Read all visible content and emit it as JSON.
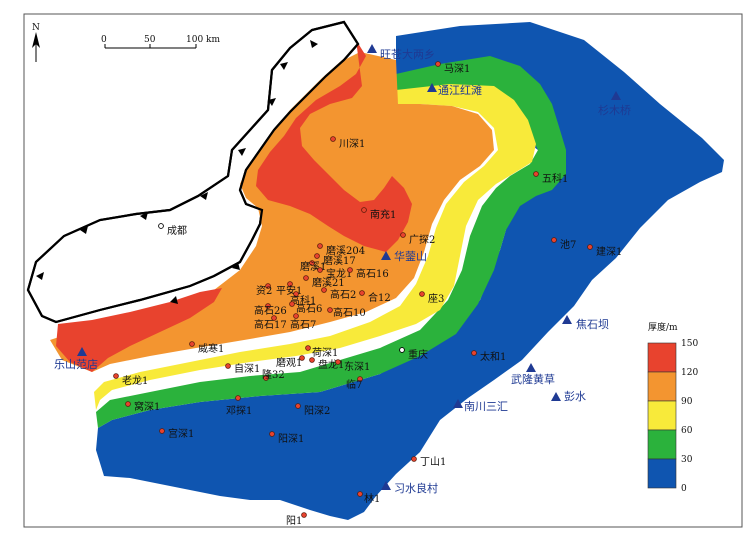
{
  "map": {
    "north_label": "N",
    "scale_ticks": [
      "0",
      "50",
      "100 km"
    ],
    "legend": {
      "title": "厚度/m",
      "ticks": [
        "150",
        "120",
        "90",
        "60",
        "30",
        "0"
      ],
      "colors": [
        "#e8432e",
        "#f39530",
        "#f8ea3a",
        "#2bb23c",
        "#0f55b0"
      ]
    },
    "outcrops": [
      {
        "name": "旺苍大两乡"
      },
      {
        "name": "通江红滩"
      },
      {
        "name": "杉木桥"
      },
      {
        "name": "华蓥山"
      },
      {
        "name": "焦石坝"
      },
      {
        "name": "乐山范店"
      },
      {
        "name": "武隆黄草"
      },
      {
        "name": "彭水"
      },
      {
        "name": "南川三汇"
      },
      {
        "name": "习水良村"
      }
    ],
    "wells": [
      {
        "name": "马深1"
      },
      {
        "name": "川深1"
      },
      {
        "name": "南充1"
      },
      {
        "name": "五科1"
      },
      {
        "name": "广探2"
      },
      {
        "name": "池7"
      },
      {
        "name": "建深1"
      },
      {
        "name": "磨溪204"
      },
      {
        "name": "磨溪17"
      },
      {
        "name": "磨溪1"
      },
      {
        "name": "宝龙1"
      },
      {
        "name": "高石16"
      },
      {
        "name": "磨溪21"
      },
      {
        "name": "资2"
      },
      {
        "name": "平安1"
      },
      {
        "name": "高科1"
      },
      {
        "name": "高石2"
      },
      {
        "name": "合12"
      },
      {
        "name": "座3"
      },
      {
        "name": "高石26"
      },
      {
        "name": "高石6"
      },
      {
        "name": "高石10"
      },
      {
        "name": "高石17"
      },
      {
        "name": "高石7"
      },
      {
        "name": "威寒1"
      },
      {
        "name": "荷深1"
      },
      {
        "name": "磨观1"
      },
      {
        "name": "盘龙1"
      },
      {
        "name": "东深1"
      },
      {
        "name": "太和1"
      },
      {
        "name": "自深1"
      },
      {
        "name": "隆32"
      },
      {
        "name": "临7"
      },
      {
        "name": "老龙1"
      },
      {
        "name": "窝深1"
      },
      {
        "name": "邓探1"
      },
      {
        "name": "阳深2"
      },
      {
        "name": "宫深1"
      },
      {
        "name": "阳深1"
      },
      {
        "name": "丁山1"
      },
      {
        "name": "林1"
      },
      {
        "name": "阳1"
      }
    ],
    "cities": [
      {
        "name": "成都"
      },
      {
        "name": "重庆"
      }
    ]
  }
}
